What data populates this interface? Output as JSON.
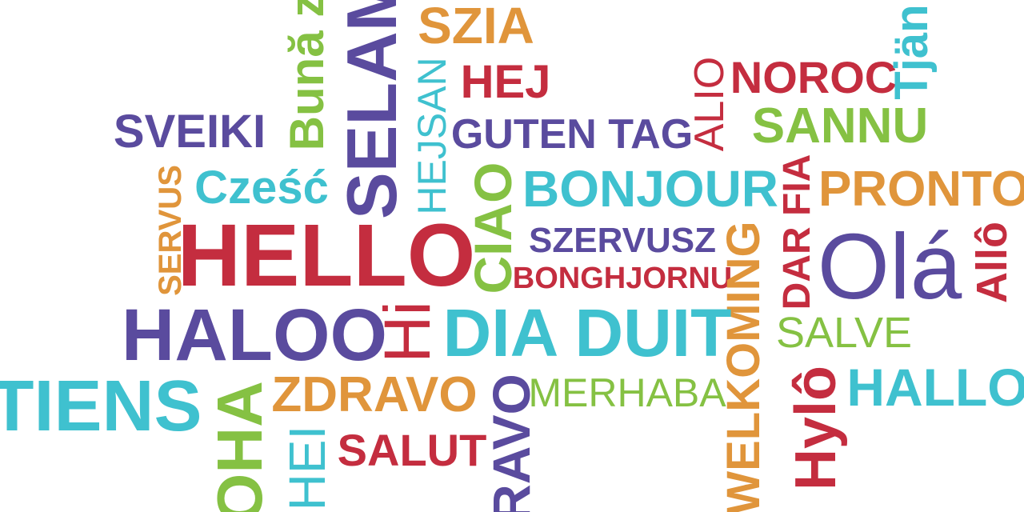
{
  "colors": {
    "purple": "#5a4b9e",
    "red": "#c42d3f",
    "orange": "#e0953b",
    "green": "#85c143",
    "cyan": "#3fc1cf"
  },
  "words": {
    "buna_ziua": "Bună z",
    "selam": "SELAM",
    "szia": "SZIA",
    "hejsan": "HEJSAN",
    "hej": "HEJ",
    "alio": "ALIO",
    "noroc": "NOROC",
    "tjan": "Tjän",
    "sveiki": "SVEIKI",
    "guten_tag": "GUTEN TAG",
    "sannu": "SANNU",
    "servus": "SERVUS",
    "czesc": "Cześć",
    "ciao": "CIAO",
    "bonjour": "BONJOUR",
    "dar_fia": "DAR FIA",
    "pronto": "PRONTO",
    "hello": "HELLO",
    "szervusz": "SZERVUSZ",
    "bonghjornu": "BONGHJORNU",
    "welkoming": "WELKOMING",
    "ola": "Olá",
    "allo": "Allô",
    "haloo": "HALOO",
    "hi": "Hi",
    "dia_duit": "DIA DUIT",
    "salve": "SALVE",
    "tiens": "TIENS",
    "oha": "OHA",
    "zdravo": "ZDRAVO",
    "ravo": "RAVO",
    "merhaba": "MERHABA",
    "hylo": "Hylô",
    "hallo": "HALLO",
    "hei": "HEI",
    "salut": "SALUT"
  }
}
